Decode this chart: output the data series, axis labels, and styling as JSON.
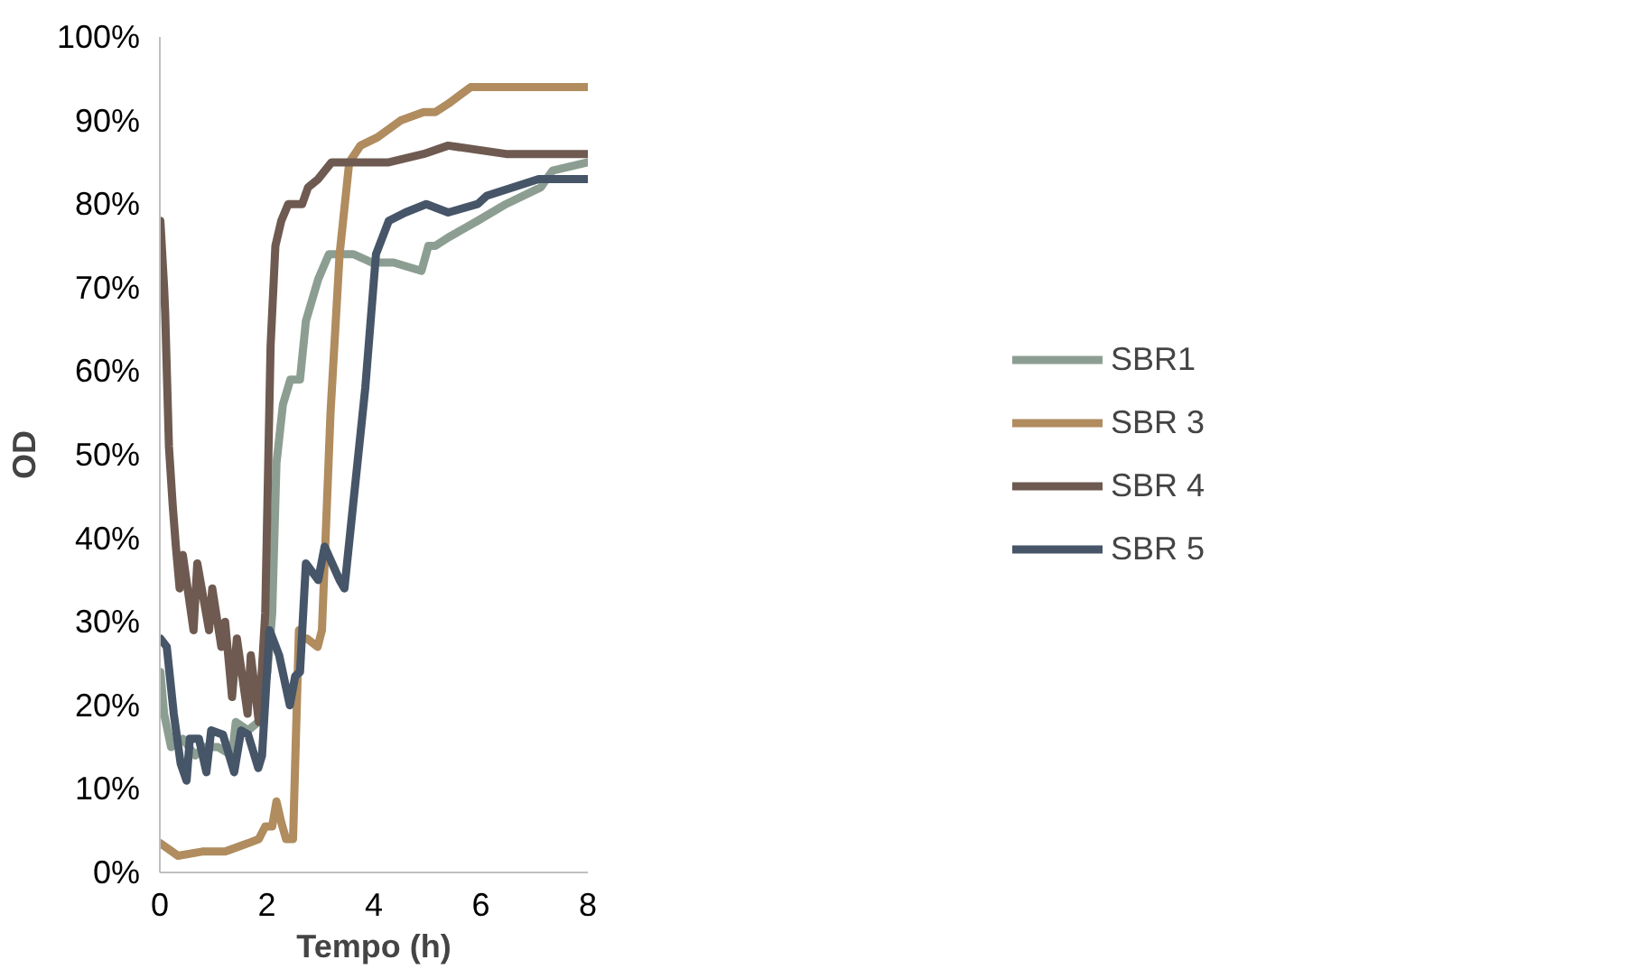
{
  "chart_data": {
    "type": "line",
    "xlabel": "Tempo (h)",
    "ylabel": "OD",
    "xlim": [
      0,
      8
    ],
    "xticks": [
      0,
      2,
      4,
      6,
      8
    ],
    "ylim": [
      0,
      100
    ],
    "yticks": [
      {
        "value": 0,
        "label": "0%"
      },
      {
        "value": 10,
        "label": "10%"
      },
      {
        "value": 20,
        "label": "20%"
      },
      {
        "value": 30,
        "label": "30%"
      },
      {
        "value": 40,
        "label": "40%"
      },
      {
        "value": 50,
        "label": "50%"
      },
      {
        "value": 60,
        "label": "60%"
      },
      {
        "value": 70,
        "label": "70%"
      },
      {
        "value": 80,
        "label": "80%"
      },
      {
        "value": 90,
        "label": "90%"
      },
      {
        "value": 100,
        "label": "100%"
      }
    ],
    "grid": false,
    "legend": "right",
    "marker": "none",
    "line_style": "solid",
    "series": [
      {
        "name": "SBR1",
        "color": "#8c9e92",
        "x": [
          0.01,
          0.08,
          0.21,
          0.43,
          0.66,
          0.83,
          1.09,
          1.35,
          1.42,
          1.65,
          1.84,
          2.01,
          2.1,
          2.18,
          2.3,
          2.44,
          2.53,
          2.62,
          2.73,
          2.96,
          3.16,
          3.62,
          3.97,
          4.37,
          4.89,
          5.02,
          5.15,
          5.39,
          5.94,
          6.47,
          7.12,
          7.34,
          8.0
        ],
        "values": [
          24,
          19,
          15,
          16,
          14,
          15,
          15,
          14,
          18,
          17,
          18,
          24,
          31,
          49,
          56,
          59,
          59,
          59,
          66,
          71,
          74,
          74,
          73,
          73,
          72,
          75,
          75,
          76,
          78,
          80,
          82,
          84,
          85
        ]
      },
      {
        "name": "SBR 3",
        "color": "#b08c5e",
        "x": [
          0.01,
          0.34,
          0.79,
          1.22,
          1.65,
          1.85,
          1.97,
          2.1,
          2.18,
          2.27,
          2.36,
          2.49,
          2.6,
          2.66,
          2.75,
          2.95,
          3.03,
          3.19,
          3.36,
          3.54,
          3.75,
          4.07,
          4.5,
          4.93,
          5.15,
          5.39,
          5.81,
          6.47,
          7.21,
          8.0
        ],
        "values": [
          3.5,
          2,
          2.5,
          2.5,
          3.5,
          4,
          5.5,
          5.5,
          8.5,
          6,
          4,
          4,
          29,
          28,
          28,
          27,
          29,
          55,
          74,
          85,
          87,
          88,
          90,
          91,
          91,
          92,
          94,
          94,
          94,
          94
        ]
      },
      {
        "name": "SBR 4",
        "color": "#6e5a50",
        "x": [
          0.01,
          0.08,
          0.1,
          0.17,
          0.24,
          0.3,
          0.37,
          0.43,
          0.63,
          0.7,
          0.92,
          0.98,
          1.15,
          1.22,
          1.35,
          1.44,
          1.64,
          1.7,
          1.85,
          1.97,
          2.07,
          2.16,
          2.27,
          2.4,
          2.66,
          2.77,
          2.96,
          3.21,
          3.62,
          4.28,
          4.93,
          5.39,
          6.47,
          8.0
        ],
        "values": [
          78,
          70,
          67,
          51,
          44,
          39,
          34,
          38,
          29,
          37,
          29,
          34,
          27,
          30,
          21,
          28,
          19,
          26,
          18,
          31,
          63,
          75,
          78,
          80,
          80,
          82,
          83,
          85,
          85,
          85,
          86,
          87,
          86,
          86
        ]
      },
      {
        "name": "SBR 5",
        "color": "#465568",
        "x": [
          0.01,
          0.13,
          0.26,
          0.39,
          0.5,
          0.56,
          0.73,
          0.87,
          0.96,
          1.18,
          1.39,
          1.52,
          1.65,
          1.84,
          1.91,
          2.05,
          2.23,
          2.43,
          2.53,
          2.62,
          2.73,
          2.96,
          3.08,
          3.36,
          3.45,
          3.58,
          3.84,
          4.04,
          4.28,
          4.59,
          4.98,
          5.39,
          5.94,
          6.11,
          7.08,
          8.0
        ],
        "values": [
          28,
          27,
          19,
          13,
          11,
          16,
          16,
          12,
          17,
          16.5,
          12,
          17,
          16.5,
          12.5,
          14,
          29,
          26,
          20,
          23.5,
          24,
          37,
          35,
          39,
          35,
          34,
          42,
          58,
          74,
          78,
          79,
          80,
          79,
          80,
          81,
          83,
          83
        ]
      }
    ]
  }
}
